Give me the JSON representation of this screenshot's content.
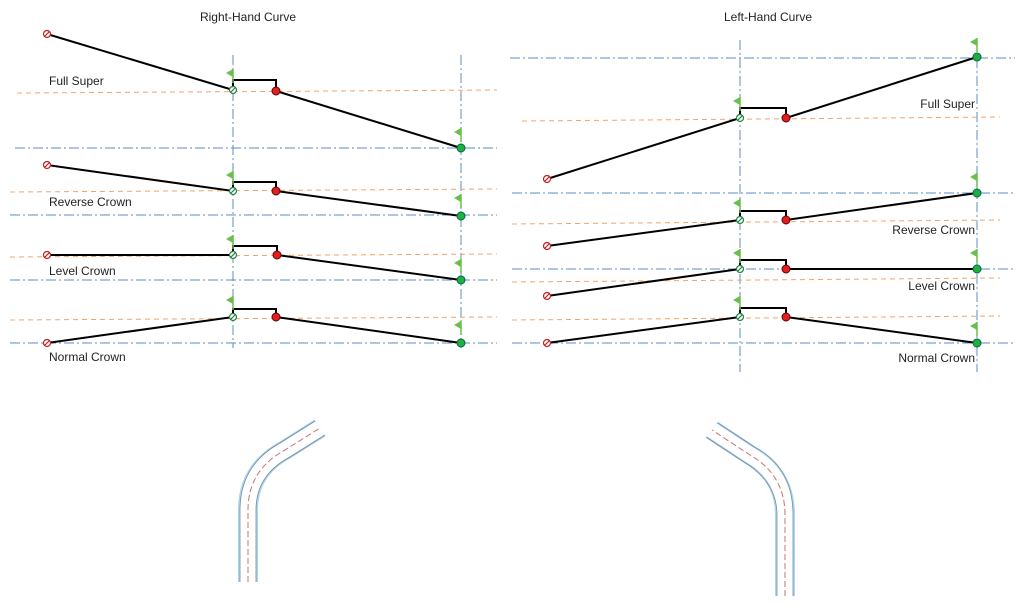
{
  "right_hand": {
    "title": "Right-Hand Curve",
    "labels": [
      "Full Super",
      "Reverse Crown",
      "Level Crown",
      "Normal Crown"
    ]
  },
  "left_hand": {
    "title": "Left-Hand Curve",
    "labels": [
      "Full Super",
      "Reverse Crown",
      "Level Crown",
      "Normal Crown"
    ]
  }
}
